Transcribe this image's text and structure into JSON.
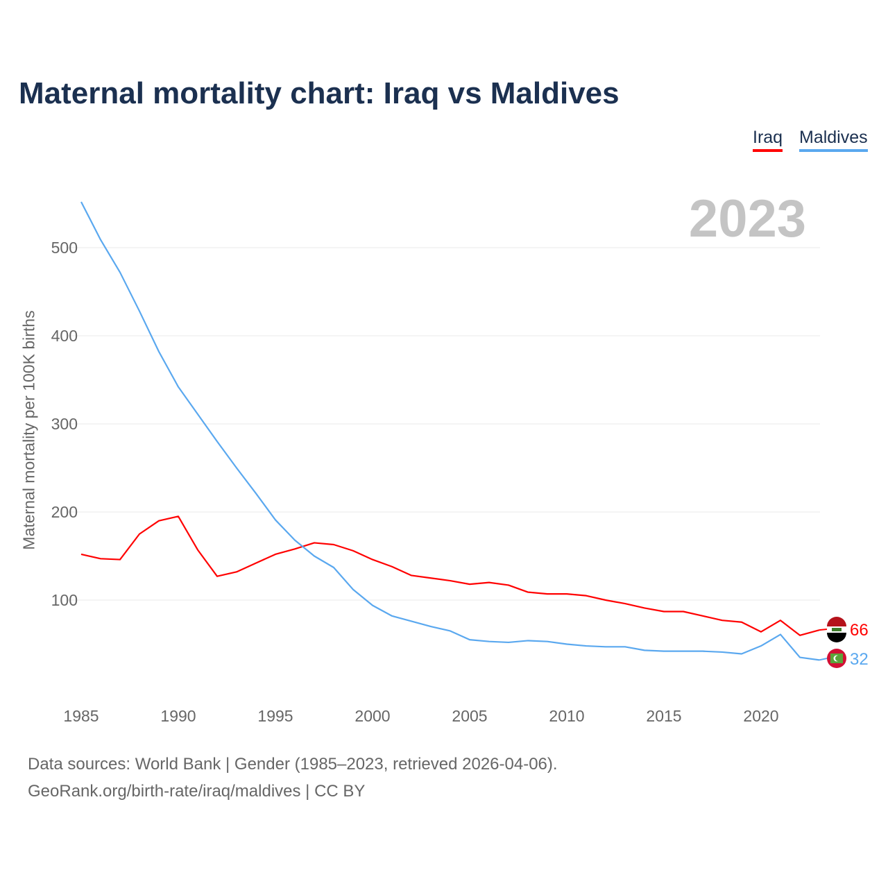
{
  "chart_data": {
    "type": "line",
    "title": "Maternal mortality chart: Iraq vs Maldives",
    "ylabel": "Maternal mortality per 100K births",
    "xlabel": "",
    "year_display": "2023",
    "xlim": [
      1985,
      2023
    ],
    "ylim": [
      0,
      560
    ],
    "xticks": [
      1985,
      1990,
      1995,
      2000,
      2005,
      2010,
      2015,
      2020
    ],
    "yticks": [
      100,
      200,
      300,
      400,
      500
    ],
    "grid": true,
    "legend_placement": "top-right",
    "x": [
      1985,
      1986,
      1987,
      1988,
      1989,
      1990,
      1991,
      1992,
      1993,
      1994,
      1995,
      1996,
      1997,
      1998,
      1999,
      2000,
      2001,
      2002,
      2003,
      2004,
      2005,
      2006,
      2007,
      2008,
      2009,
      2010,
      2011,
      2012,
      2013,
      2014,
      2015,
      2016,
      2017,
      2018,
      2019,
      2020,
      2021,
      2022,
      2023
    ],
    "series": [
      {
        "name": "Iraq",
        "color": "#ff0000",
        "end_label": "66",
        "values": [
          152,
          147,
          146,
          175,
          190,
          195,
          157,
          127,
          132,
          142,
          152,
          158,
          165,
          163,
          156,
          146,
          138,
          128,
          125,
          122,
          118,
          120,
          117,
          109,
          107,
          107,
          105,
          100,
          96,
          91,
          87,
          87,
          82,
          77,
          75,
          64,
          77,
          60,
          66
        ]
      },
      {
        "name": "Maldives",
        "color": "#5aa8ef",
        "end_label": "32",
        "values": [
          552,
          509,
          472,
          428,
          382,
          342,
          311,
          280,
          250,
          221,
          191,
          168,
          150,
          137,
          112,
          94,
          82,
          76,
          70,
          65,
          55,
          53,
          52,
          54,
          53,
          50,
          48,
          47,
          47,
          43,
          42,
          42,
          42,
          41,
          39,
          48,
          61,
          35,
          32
        ]
      }
    ]
  },
  "footer": {
    "line1": "Data sources: World Bank | Gender (1985–2023, retrieved 2026-04-06).",
    "line2": "GeoRank.org/birth-rate/iraq/maldives | CC BY"
  }
}
